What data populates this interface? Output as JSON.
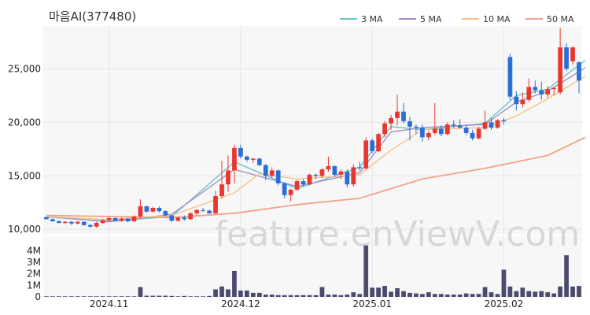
{
  "title": "마음AI(377480)",
  "watermark": "feature.enViewV.com",
  "chart_data": [
    {
      "type": "candlestick",
      "title": "마음AI(377480)",
      "ylim": [
        9500,
        29000
      ],
      "yticks": [
        10000,
        15000,
        20000,
        25000
      ],
      "ytick_labels": [
        "10,000",
        "15,000",
        "20,000",
        "25,000"
      ],
      "xtick_labels": [
        "2024.11",
        "2024.12",
        "2025.01",
        "2025.02"
      ],
      "xtick_index": [
        10,
        31,
        52,
        73
      ],
      "grid": true,
      "legend_position": "top-right",
      "colors": {
        "up": "#e8372f",
        "down": "#2a6fd6",
        "background": "#f7f7f7"
      },
      "candles": [
        [
          11150,
          11150,
          10900,
          10950
        ],
        [
          10950,
          11000,
          10700,
          10750
        ],
        [
          10750,
          10850,
          10550,
          10600
        ],
        [
          10600,
          10800,
          10500,
          10700
        ],
        [
          10700,
          10750,
          10400,
          10550
        ],
        [
          10550,
          10800,
          10450,
          10700
        ],
        [
          10700,
          10750,
          10300,
          10400
        ],
        [
          10400,
          10500,
          10150,
          10250
        ],
        [
          10250,
          10700,
          10150,
          10600
        ],
        [
          10600,
          10950,
          10500,
          10850
        ],
        [
          10850,
          11200,
          10750,
          11050
        ],
        [
          11050,
          11100,
          10750,
          10800
        ],
        [
          10800,
          11100,
          10700,
          11000
        ],
        [
          11000,
          11050,
          10650,
          10750
        ],
        [
          10750,
          11300,
          10700,
          11200
        ],
        [
          11200,
          12800,
          11000,
          12150
        ],
        [
          12150,
          12200,
          11550,
          11650
        ],
        [
          11650,
          12100,
          11600,
          12000
        ],
        [
          12000,
          12150,
          11550,
          11700
        ],
        [
          11700,
          11800,
          11200,
          11300
        ],
        [
          11300,
          11350,
          10700,
          10800
        ],
        [
          10800,
          11200,
          10700,
          11100
        ],
        [
          11100,
          11300,
          10800,
          10950
        ],
        [
          10950,
          11600,
          10900,
          11500
        ],
        [
          11500,
          11900,
          11300,
          11800
        ],
        [
          11800,
          12000,
          11600,
          11750
        ],
        [
          11750,
          11800,
          11450,
          11500
        ],
        [
          11500,
          13600,
          11400,
          13100
        ],
        [
          13100,
          16400,
          12900,
          14200
        ],
        [
          14200,
          16900,
          13500,
          15500
        ],
        [
          15500,
          17900,
          14300,
          17600
        ],
        [
          17600,
          17900,
          16600,
          16800
        ],
        [
          16800,
          16900,
          16300,
          16500
        ],
        [
          16500,
          16700,
          16200,
          16600
        ],
        [
          16600,
          16700,
          15900,
          16000
        ],
        [
          16000,
          16100,
          14600,
          15000
        ],
        [
          15000,
          15800,
          14800,
          15500
        ],
        [
          15500,
          15600,
          14100,
          14300
        ],
        [
          14300,
          14400,
          12900,
          13200
        ],
        [
          13200,
          13800,
          12600,
          13700
        ],
        [
          13700,
          14600,
          13600,
          14500
        ],
        [
          14500,
          14700,
          14000,
          14200
        ],
        [
          14200,
          15200,
          14100,
          15100
        ],
        [
          15100,
          15200,
          14700,
          15000
        ],
        [
          15000,
          15700,
          14800,
          15600
        ],
        [
          15600,
          16800,
          15400,
          15900
        ],
        [
          15900,
          16000,
          14900,
          15100
        ],
        [
          15100,
          15600,
          14700,
          15400
        ],
        [
          15400,
          15600,
          13900,
          14200
        ],
        [
          14200,
          16100,
          14000,
          15800
        ],
        [
          15800,
          16300,
          15500,
          15700
        ],
        [
          15700,
          18600,
          15600,
          18300
        ],
        [
          18300,
          18500,
          17100,
          17300
        ],
        [
          17300,
          19000,
          17200,
          18900
        ],
        [
          18900,
          20100,
          18600,
          19900
        ],
        [
          19900,
          20700,
          19300,
          20400
        ],
        [
          20400,
          22600,
          19700,
          21000
        ],
        [
          21000,
          21800,
          19900,
          20100
        ],
        [
          20100,
          20500,
          18300,
          19600
        ],
        [
          19600,
          19800,
          18900,
          19500
        ],
        [
          19500,
          19800,
          18200,
          18600
        ],
        [
          18600,
          19200,
          18300,
          19000
        ],
        [
          19000,
          21800,
          18800,
          19400
        ],
        [
          19400,
          19700,
          18700,
          18900
        ],
        [
          18900,
          20000,
          18800,
          19800
        ],
        [
          19800,
          20200,
          19500,
          19700
        ],
        [
          19700,
          20300,
          19400,
          19500
        ],
        [
          19500,
          19800,
          18800,
          19000
        ],
        [
          19000,
          19300,
          18300,
          18500
        ],
        [
          18500,
          19600,
          18400,
          19400
        ],
        [
          19400,
          21100,
          19300,
          20000
        ],
        [
          20000,
          20400,
          19300,
          19500
        ],
        [
          19500,
          20300,
          19400,
          20200
        ],
        [
          20200,
          20400,
          19800,
          20100
        ],
        [
          26100,
          26400,
          22100,
          22400
        ],
        [
          22400,
          22900,
          21100,
          21700
        ],
        [
          21700,
          22800,
          21400,
          22100
        ],
        [
          22100,
          24100,
          21900,
          23300
        ],
        [
          23300,
          23900,
          22700,
          23000
        ],
        [
          23000,
          23800,
          22100,
          22600
        ],
        [
          22600,
          23400,
          22300,
          23100
        ],
        [
          23100,
          23300,
          22500,
          23200
        ],
        [
          22800,
          28800,
          22600,
          27000
        ],
        [
          27000,
          27400,
          24800,
          25000
        ],
        [
          25700,
          27100,
          25400,
          27000
        ],
        [
          25600,
          25700,
          22700,
          23900
        ]
      ],
      "ma": [
        {
          "name": "3 MA",
          "color": "#6cc4c7",
          "points": [
            [
              0,
              11150
            ],
            [
              10,
              10750
            ],
            [
              20,
              11200
            ],
            [
              30,
              16300
            ],
            [
              40,
              13800
            ],
            [
              50,
              15800
            ],
            [
              55,
              19600
            ],
            [
              60,
              19300
            ],
            [
              70,
              19900
            ],
            [
              75,
              22500
            ],
            [
              80,
              23100
            ],
            [
              86,
              25800
            ]
          ]
        },
        {
          "name": "5 MA",
          "color": "#a48fc6",
          "points": [
            [
              0,
              11200
            ],
            [
              10,
              10700
            ],
            [
              20,
              11400
            ],
            [
              30,
              15600
            ],
            [
              40,
              14000
            ],
            [
              50,
              15300
            ],
            [
              55,
              19100
            ],
            [
              60,
              19500
            ],
            [
              70,
              19800
            ],
            [
              75,
              21900
            ],
            [
              80,
              22900
            ],
            [
              86,
              25100
            ]
          ]
        },
        {
          "name": "10 MA",
          "color": "#f0c48c",
          "points": [
            [
              0,
              11200
            ],
            [
              10,
              10900
            ],
            [
              20,
              11300
            ],
            [
              30,
              13400
            ],
            [
              34,
              15200
            ],
            [
              40,
              14700
            ],
            [
              50,
              15100
            ],
            [
              55,
              17400
            ],
            [
              60,
              19300
            ],
            [
              70,
              19500
            ],
            [
              75,
              20600
            ],
            [
              80,
              22200
            ],
            [
              86,
              24300
            ]
          ]
        },
        {
          "name": "50 MA",
          "color": "#f2a28c",
          "points": [
            [
              0,
              11300
            ],
            [
              10,
              11200
            ],
            [
              20,
              11100
            ],
            [
              30,
              11500
            ],
            [
              40,
              12300
            ],
            [
              50,
              12900
            ],
            [
              60,
              14700
            ],
            [
              70,
              15700
            ],
            [
              80,
              16900
            ],
            [
              86,
              18600
            ]
          ]
        }
      ]
    },
    {
      "type": "bar",
      "ylim": [
        0,
        4700000
      ],
      "yticks": [
        0,
        1000000,
        2000000,
        3000000,
        4000000
      ],
      "ytick_labels": [
        "0",
        "1M",
        "2M",
        "3M",
        "4M"
      ],
      "color": "#4a4a6e",
      "values": [
        50000,
        50000,
        50000,
        50000,
        50000,
        50000,
        50000,
        50000,
        50000,
        50000,
        50000,
        50000,
        50000,
        50000,
        50000,
        850000,
        100000,
        100000,
        100000,
        100000,
        80000,
        50000,
        80000,
        50000,
        50000,
        50000,
        80000,
        650000,
        900000,
        650000,
        2250000,
        550000,
        550000,
        350000,
        350000,
        200000,
        200000,
        150000,
        150000,
        150000,
        150000,
        150000,
        150000,
        150000,
        850000,
        200000,
        200000,
        150000,
        200000,
        400000,
        250000,
        4450000,
        800000,
        800000,
        950000,
        450000,
        750000,
        500000,
        350000,
        300000,
        250000,
        400000,
        250000,
        250000,
        200000,
        200000,
        200000,
        300000,
        250000,
        250000,
        850000,
        400000,
        250000,
        2350000,
        900000,
        500000,
        800000,
        500000,
        450000,
        500000,
        400000,
        300000,
        900000,
        3600000,
        900000,
        950000
      ]
    }
  ]
}
